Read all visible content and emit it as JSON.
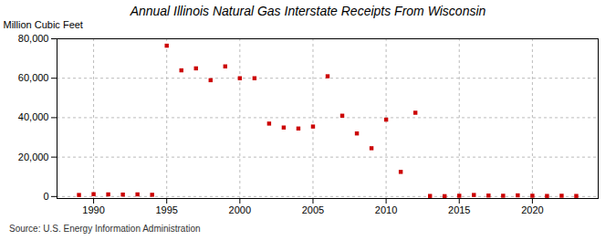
{
  "chart_data": {
    "type": "scatter",
    "title": "Annual Illinois Natural Gas Interstate Receipts From Wisconsin",
    "ylabel": "Million Cubic Feet",
    "source": "Source: U.S. Energy Information Administration",
    "x": [
      1989,
      1990,
      1991,
      1992,
      1993,
      1994,
      1995,
      1996,
      1997,
      1998,
      1999,
      2000,
      2001,
      2002,
      2003,
      2004,
      2005,
      2006,
      2007,
      2008,
      2009,
      2010,
      2011,
      2012,
      2013,
      2014,
      2015,
      2016,
      2017,
      2018,
      2019,
      2020,
      2021,
      2022,
      2023
    ],
    "values": [
      800,
      1200,
      1100,
      1000,
      1100,
      900,
      76500,
      64000,
      65000,
      59000,
      66000,
      60000,
      60000,
      37000,
      35000,
      34500,
      35500,
      61000,
      41000,
      32000,
      24500,
      39000,
      12500,
      42500,
      300,
      200,
      400,
      800,
      500,
      400,
      600,
      400,
      300,
      400,
      300
    ],
    "color": "#cc0000",
    "marker": "square",
    "xlim": [
      1987.5,
      2024.5
    ],
    "ylim": [
      -1000,
      80000
    ],
    "xticks": [
      1990,
      1995,
      2000,
      2005,
      2010,
      2015,
      2020
    ],
    "yticks": [
      0,
      {
        "value": 20000,
        "label": "20,000"
      },
      {
        "value": 40000,
        "label": "40,000"
      },
      {
        "value": 60000,
        "label": "60,000"
      },
      {
        "value": 80000,
        "label": "80,000"
      }
    ],
    "grid": true
  }
}
